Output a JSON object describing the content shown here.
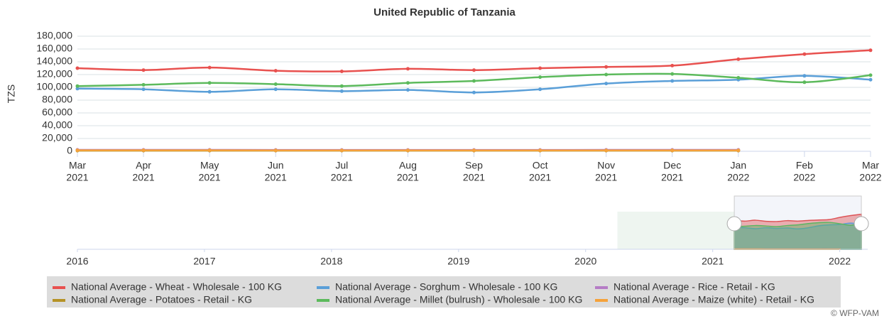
{
  "chart_data": {
    "type": "line",
    "title": "United Republic of Tanzania",
    "y_label": "TZS",
    "categories": [
      [
        "Mar",
        "2021"
      ],
      [
        "Apr",
        "2021"
      ],
      [
        "May",
        "2021"
      ],
      [
        "Jun",
        "2021"
      ],
      [
        "Jul",
        "2021"
      ],
      [
        "Aug",
        "2021"
      ],
      [
        "Sep",
        "2021"
      ],
      [
        "Oct",
        "2021"
      ],
      [
        "Nov",
        "2021"
      ],
      [
        "Dec",
        "2021"
      ],
      [
        "Jan",
        "2022"
      ],
      [
        "Feb",
        "2022"
      ],
      [
        "Mar",
        "2022"
      ]
    ],
    "ylim": [
      0,
      180000
    ],
    "yticks": [
      0,
      {
        "value": 20000,
        "label": "20,000"
      },
      {
        "value": 40000,
        "label": "40,000"
      },
      {
        "value": 60000,
        "label": "60,000"
      },
      {
        "value": 80000,
        "label": "80,000"
      },
      {
        "value": 100000,
        "label": "100,000"
      },
      {
        "value": 120000,
        "label": "120,000"
      },
      {
        "value": 140000,
        "label": "140,000"
      },
      {
        "value": 160000,
        "label": "160,000"
      },
      {
        "value": 180000,
        "label": "180,000"
      }
    ],
    "grid": true,
    "series": [
      {
        "name": "National Average - Wheat - Wholesale - 100 KG",
        "color": "#e8514f",
        "values": [
          130000,
          127000,
          131000,
          126000,
          125000,
          129000,
          127000,
          130000,
          132000,
          134000,
          144000,
          152000,
          158000
        ]
      },
      {
        "name": "National Average - Sorghum - Wholesale - 100 KG",
        "color": "#5a9fd8",
        "values": [
          98000,
          97000,
          93000,
          97000,
          94000,
          96000,
          92000,
          97000,
          106000,
          110000,
          112000,
          118000,
          112000
        ]
      },
      {
        "name": "National Average - Rice - Retail - KG",
        "color": "#b57cc6",
        "values": [
          2200,
          2200,
          2200,
          2100,
          2100,
          2100,
          2100,
          2100,
          2200,
          2200,
          2200,
          null,
          null
        ]
      },
      {
        "name": "National Average - Potatoes - Retail - KG",
        "color": "#b59225",
        "values": [
          1000,
          1000,
          1000,
          1000,
          1000,
          1000,
          1000,
          1000,
          1000,
          1000,
          1000,
          null,
          null
        ]
      },
      {
        "name": "National Average - Millet (bulrush) - Wholesale - 100 KG",
        "color": "#5cba5c",
        "values": [
          102000,
          104000,
          107000,
          105000,
          102000,
          107000,
          110000,
          116000,
          120000,
          121000,
          115000,
          108000,
          119000
        ]
      },
      {
        "name": "National Average - Maize (white) - Retail - KG",
        "color": "#f5a23a",
        "values": [
          1500,
          1500,
          1500,
          1400,
          1400,
          1400,
          1400,
          1400,
          1400,
          1400,
          1400,
          null,
          null
        ]
      }
    ],
    "navigator": {
      "xlim": [
        2016,
        2022.22
      ],
      "xticks": [
        2016,
        2017,
        2018,
        2019,
        2020,
        2021,
        2022
      ],
      "selection": [
        2021.17,
        2022.17
      ]
    },
    "credit": "© WFP-VAM"
  }
}
